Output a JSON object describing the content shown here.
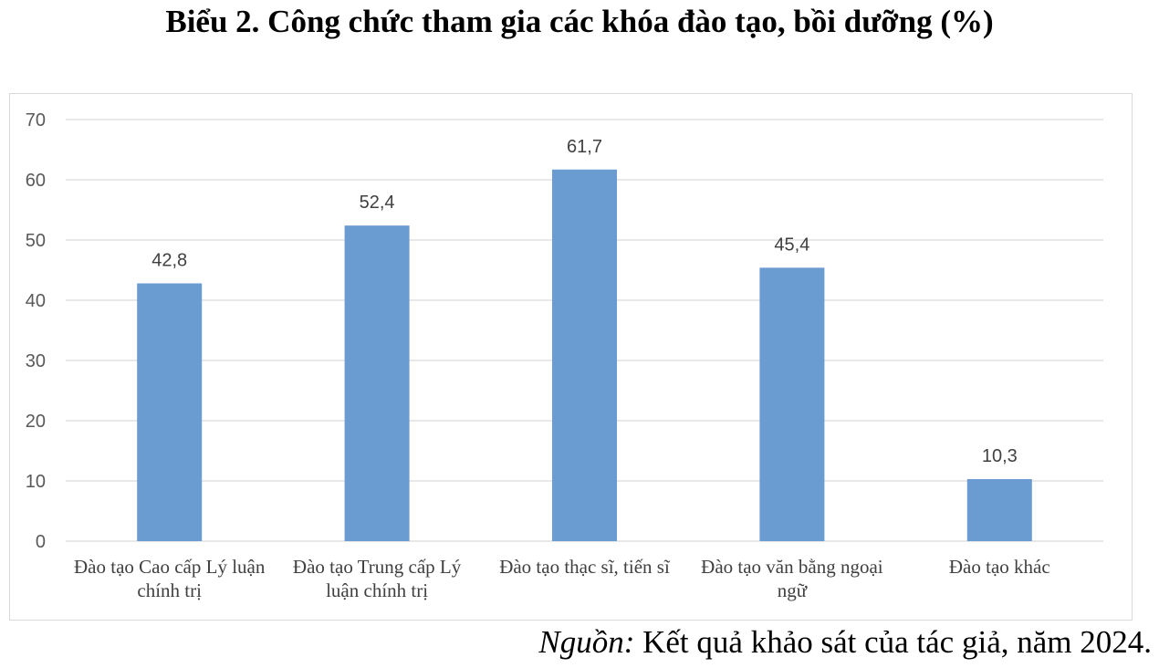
{
  "page": {
    "title": "Biểu 2. Công chức tham gia các khóa đào tạo, bồi dưỡng (%)",
    "source_prefix": "Nguồn:",
    "source_text": " Kết quả khảo sát của tác giả, năm 2024."
  },
  "chart_data": {
    "type": "bar",
    "title": "Biểu 2. Công chức tham gia các khóa đào tạo, bồi dưỡng (%)",
    "categories": [
      "Đào tạo Cao cấp Lý luận chính trị",
      "Đào tạo Trung cấp Lý luận chính trị",
      "Đào tạo thạc sĩ, tiến sĩ",
      "Đào tạo văn bằng ngoại ngữ",
      "Đào tạo khác"
    ],
    "values": [
      42.8,
      52.4,
      61.7,
      45.4,
      10.3
    ],
    "value_labels": [
      "42,8",
      "52,4",
      "61,7",
      "45,4",
      "10,3"
    ],
    "ylim": [
      0,
      70
    ],
    "yticks": [
      "0",
      "10",
      "20",
      "30",
      "40",
      "50",
      "60",
      "70"
    ],
    "grid": true,
    "legend": "none",
    "bar_color": "#6a9bd1",
    "grid_color": "#d9d9d9"
  }
}
